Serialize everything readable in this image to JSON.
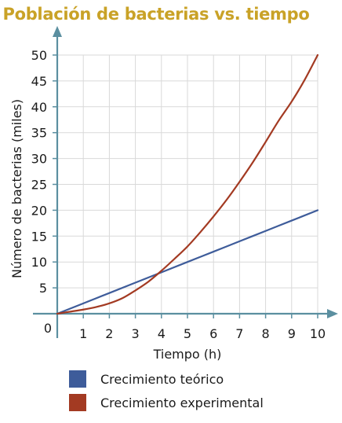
{
  "chart_data": {
    "type": "line",
    "title": "Población de bacterias vs. tiempo",
    "xlabel": "Tiempo (h)",
    "ylabel": "Número de bacterias (miles)",
    "origin_label": "0",
    "xlim": [
      0,
      10
    ],
    "ylim": [
      0,
      50
    ],
    "x_ticks": [
      "1",
      "2",
      "3",
      "4",
      "5",
      "6",
      "7",
      "8",
      "9",
      "10"
    ],
    "y_ticks": [
      "5",
      "10",
      "15",
      "20",
      "25",
      "30",
      "35",
      "40",
      "45",
      "50"
    ],
    "grid": true,
    "legend_position": "bottom",
    "series": [
      {
        "name": "Crecimiento teórico",
        "color": "#3e5c9a",
        "x": [
          0,
          1,
          2,
          3,
          4,
          5,
          6,
          7,
          8,
          9,
          10
        ],
        "y": [
          0,
          2,
          4,
          6,
          8,
          10,
          12,
          14,
          16,
          18,
          20
        ]
      },
      {
        "name": "Crecimiento experimental",
        "color": "#a33a22",
        "x": [
          0,
          0.5,
          1,
          1.5,
          2,
          2.5,
          3,
          3.5,
          4,
          4.5,
          5,
          5.5,
          6,
          6.5,
          7,
          7.5,
          8,
          8.5,
          9,
          9.5,
          10
        ],
        "y": [
          0,
          0.4,
          0.8,
          1.3,
          2,
          3,
          4.5,
          6.2,
          8.3,
          10.6,
          13,
          15.8,
          18.8,
          22,
          25.5,
          29.2,
          33.2,
          37.3,
          41,
          45.2,
          50
        ]
      }
    ]
  },
  "colors": {
    "title": "#c9a227",
    "axis": "#5b8fa0",
    "grid": "#d9d9d9"
  }
}
